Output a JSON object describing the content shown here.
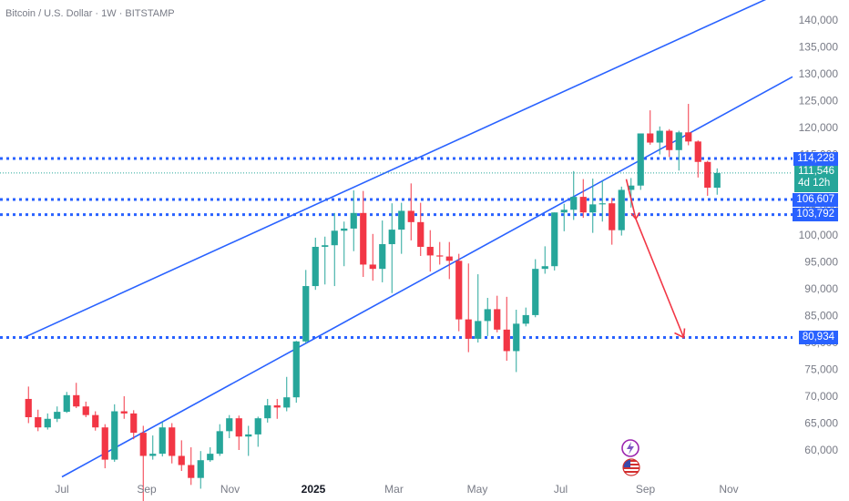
{
  "header": {
    "title": "Bitcoin / U.S. Dollar · 1W · BITSTAMP"
  },
  "colors": {
    "up": "#26a69a",
    "down": "#f23645",
    "channel": "#2962ff",
    "level": "#2962ff",
    "arrow": "#f23645",
    "price_line": "#26a69a"
  },
  "icons": [
    "lightning-icon",
    "us-flag-icon"
  ],
  "chart_data": {
    "type": "candlestick",
    "title": "Bitcoin / U.S. Dollar · 1W · BITSTAMP",
    "interval": "1W",
    "y_scale": "linear",
    "ylim": [
      55000,
      142000
    ],
    "y_ticks": [
      "140,000",
      "135,000",
      "130,000",
      "125,000",
      "120,000",
      "115,000",
      "110,000",
      "105,000",
      "100,000",
      "95,000",
      "90,000",
      "85,000",
      "80,000",
      "75,000",
      "70,000",
      "65,000",
      "60,000"
    ],
    "x_ticks": [
      "Jul",
      "Sep",
      "Nov",
      "2025",
      "Mar",
      "May",
      "Jul",
      "Sep",
      "Nov"
    ],
    "x_tick_dates": [
      "2024-07",
      "2024-09",
      "2024-11",
      "2025-01",
      "2025-03",
      "2025-05",
      "2025-07",
      "2025-09",
      "2025-11"
    ],
    "candles_weekly_ohlc_from": "2024-06-03",
    "candles": [
      [
        69500,
        71800,
        65000,
        66100
      ],
      [
        66100,
        67500,
        63500,
        64200
      ],
      [
        64200,
        66800,
        63800,
        65800
      ],
      [
        65800,
        68100,
        65200,
        67100
      ],
      [
        67100,
        70800,
        66900,
        70200
      ],
      [
        70200,
        72500,
        67800,
        68100
      ],
      [
        68100,
        69000,
        66100,
        66500
      ],
      [
        66500,
        67200,
        63600,
        64200
      ],
      [
        64200,
        64800,
        56600,
        58200
      ],
      [
        58200,
        68500,
        57800,
        67200
      ],
      [
        67200,
        70000,
        65800,
        66800
      ],
      [
        66800,
        67400,
        62000,
        63200
      ],
      [
        63200,
        64500,
        49200,
        58900
      ],
      [
        58900,
        62700,
        58200,
        59300
      ],
      [
        59300,
        65200,
        58800,
        64200
      ],
      [
        64200,
        65000,
        57500,
        58900
      ],
      [
        58900,
        61800,
        56100,
        57200
      ],
      [
        57200,
        60500,
        53500,
        54800
      ],
      [
        54800,
        59800,
        52800,
        58100
      ],
      [
        58100,
        60500,
        57800,
        59300
      ],
      [
        59300,
        64800,
        58900,
        63500
      ],
      [
        63500,
        66500,
        62200,
        65900
      ],
      [
        65900,
        66400,
        60000,
        62500
      ],
      [
        62500,
        64500,
        58900,
        62900
      ],
      [
        62900,
        66200,
        60600,
        65900
      ],
      [
        65900,
        69500,
        65100,
        68300
      ],
      [
        68300,
        69500,
        65800,
        67900
      ],
      [
        67900,
        73600,
        67200,
        69800
      ],
      [
        69800,
        80300,
        68800,
        80200
      ],
      [
        80200,
        93500,
        79800,
        90500
      ],
      [
        90500,
        99500,
        89800,
        97800
      ],
      [
        97800,
        99700,
        90800,
        98100
      ],
      [
        98100,
        104100,
        90500,
        100800
      ],
      [
        100800,
        102500,
        94200,
        101200
      ],
      [
        101200,
        108300,
        97000,
        104100
      ],
      [
        104100,
        108200,
        92200,
        94500
      ],
      [
        94500,
        100200,
        91500,
        93700
      ],
      [
        93700,
        102700,
        91200,
        98300
      ],
      [
        98300,
        105900,
        89200,
        101000
      ],
      [
        101000,
        106000,
        96500,
        104500
      ],
      [
        104500,
        109600,
        99000,
        102400
      ],
      [
        102400,
        106000,
        96100,
        97800
      ],
      [
        97800,
        100900,
        93200,
        96200
      ],
      [
        96200,
        98700,
        94500,
        96000
      ],
      [
        96000,
        98700,
        91800,
        95200
      ],
      [
        95200,
        96500,
        82100,
        84300
      ],
      [
        84300,
        94700,
        78200,
        80700
      ],
      [
        80700,
        92700,
        80000,
        84000
      ],
      [
        84000,
        88300,
        81200,
        86200
      ],
      [
        86200,
        88700,
        81900,
        82400
      ],
      [
        82400,
        88500,
        76600,
        78400
      ],
      [
        78400,
        86100,
        74500,
        83500
      ],
      [
        83500,
        86500,
        83000,
        85100
      ],
      [
        85100,
        95500,
        84700,
        93700
      ],
      [
        93700,
        97900,
        92800,
        94200
      ],
      [
        94200,
        104200,
        93400,
        104200
      ],
      [
        104200,
        105800,
        100700,
        104700
      ],
      [
        104700,
        111900,
        102800,
        107100
      ],
      [
        107100,
        110400,
        103200,
        104200
      ],
      [
        104200,
        110500,
        100400,
        105700
      ],
      [
        105700,
        110100,
        102500,
        105900
      ],
      [
        105900,
        106900,
        98200,
        100900
      ],
      [
        100900,
        109000,
        99900,
        108400
      ],
      [
        108400,
        110600,
        105100,
        109200
      ],
      [
        109200,
        118800,
        108400,
        118900
      ],
      [
        118900,
        123200,
        116800,
        117200
      ],
      [
        117200,
        120200,
        115000,
        119400
      ],
      [
        119400,
        119700,
        114500,
        115800
      ],
      [
        115800,
        119400,
        112000,
        119100
      ],
      [
        119100,
        124400,
        116700,
        117400
      ],
      [
        117400,
        117600,
        110700,
        113600
      ],
      [
        113600,
        113800,
        107300,
        108800
      ],
      [
        108800,
        112400,
        107500,
        111546
      ]
    ],
    "channel": {
      "upper": [
        [
          "2024-06-03",
          80900
        ],
        [
          "2025-10-13",
          138500
        ]
      ],
      "lower": [
        [
          "2024-07-01",
          55000
        ],
        [
          "2025-10-13",
          120300
        ]
      ]
    },
    "levels": [
      "114,228",
      "106,607",
      "103,792",
      "80,934"
    ],
    "levels_numeric": [
      114228,
      106607,
      103792,
      80934
    ],
    "current_price": {
      "label": "111,546",
      "value": 111546,
      "countdown": "4d 12h"
    },
    "projection_arrow": {
      "from": [
        "2025-08-18",
        110400
      ],
      "mid": [
        "2025-08-25",
        103000
      ],
      "to": [
        "2025-09-29",
        80934
      ]
    }
  }
}
